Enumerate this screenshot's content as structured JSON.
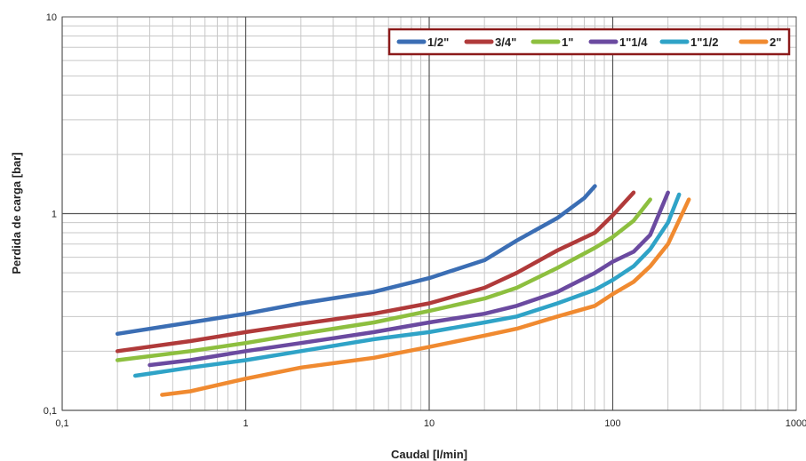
{
  "chart_data": {
    "type": "line",
    "xscale": "log",
    "yscale": "log",
    "xlabel": "Caudal [l/min]",
    "ylabel": "Perdida de carga [bar]",
    "xlim": [
      0.1,
      1000
    ],
    "ylim": [
      0.1,
      10
    ],
    "x_tick_labels": [
      "0,1",
      "1",
      "10",
      "100",
      "1000"
    ],
    "y_tick_labels": [
      "0,1",
      "1",
      "10"
    ],
    "grid": true,
    "legend_position": "top-right",
    "series": [
      {
        "name": "1/2\"",
        "color": "#3b6eb4",
        "x": [
          0.2,
          0.5,
          1,
          2,
          5,
          10,
          20,
          30,
          50,
          70,
          80
        ],
        "y": [
          0.245,
          0.28,
          0.31,
          0.35,
          0.4,
          0.47,
          0.58,
          0.73,
          0.95,
          1.2,
          1.38
        ]
      },
      {
        "name": "3/4\"",
        "color": "#b03a3a",
        "x": [
          0.2,
          0.5,
          1,
          2,
          5,
          10,
          20,
          30,
          50,
          80,
          100,
          130
        ],
        "y": [
          0.2,
          0.225,
          0.25,
          0.275,
          0.31,
          0.35,
          0.42,
          0.5,
          0.65,
          0.8,
          0.98,
          1.28
        ]
      },
      {
        "name": "1\"",
        "color": "#8dbf3f",
        "x": [
          0.2,
          0.5,
          1,
          2,
          5,
          10,
          20,
          30,
          50,
          80,
          100,
          130,
          160
        ],
        "y": [
          0.18,
          0.2,
          0.22,
          0.245,
          0.28,
          0.32,
          0.37,
          0.42,
          0.53,
          0.67,
          0.76,
          0.92,
          1.18
        ]
      },
      {
        "name": "1\"1/4",
        "color": "#6b4aa0",
        "x": [
          0.3,
          0.5,
          1,
          2,
          5,
          10,
          20,
          30,
          50,
          80,
          100,
          130,
          160,
          200
        ],
        "y": [
          0.17,
          0.18,
          0.2,
          0.22,
          0.25,
          0.28,
          0.31,
          0.34,
          0.4,
          0.5,
          0.57,
          0.64,
          0.78,
          1.28
        ]
      },
      {
        "name": "1\"1/2",
        "color": "#2fa3c7",
        "x": [
          0.25,
          0.5,
          1,
          2,
          5,
          10,
          20,
          30,
          50,
          80,
          100,
          130,
          160,
          200,
          230
        ],
        "y": [
          0.15,
          0.165,
          0.18,
          0.2,
          0.23,
          0.25,
          0.28,
          0.3,
          0.35,
          0.41,
          0.46,
          0.54,
          0.66,
          0.9,
          1.25
        ]
      },
      {
        "name": "2\"",
        "color": "#f08a30",
        "x": [
          0.35,
          0.5,
          1,
          2,
          5,
          10,
          20,
          30,
          50,
          80,
          100,
          130,
          160,
          200,
          260
        ],
        "y": [
          0.12,
          0.125,
          0.145,
          0.165,
          0.185,
          0.21,
          0.24,
          0.26,
          0.3,
          0.34,
          0.39,
          0.45,
          0.54,
          0.7,
          1.18
        ]
      }
    ]
  }
}
